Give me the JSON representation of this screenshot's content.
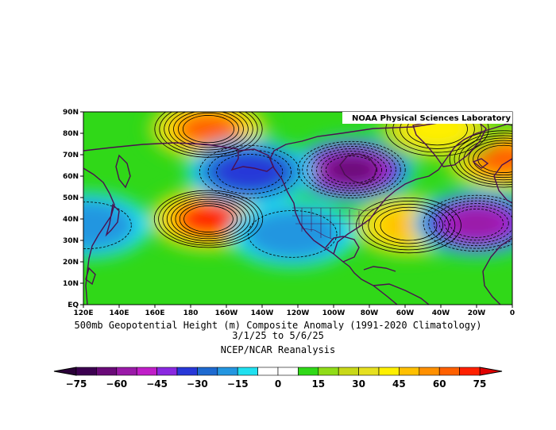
{
  "credit": "NOAA Physical Sciences Laboratory",
  "caption": {
    "line1": "500mb Geopotential Height (m) Composite Anomaly (1991-2020 Climatology)",
    "line2": "3/1/25  to 5/6/25",
    "line3": "NCEP/NCAR Reanalysis"
  },
  "map": {
    "lat_labels": [
      "90N",
      "80N",
      "70N",
      "60N",
      "50N",
      "40N",
      "30N",
      "20N",
      "10N",
      "EQ"
    ],
    "lon_labels": [
      "120E",
      "140E",
      "160E",
      "180",
      "160W",
      "140W",
      "120W",
      "100W",
      "80W",
      "60W",
      "40W",
      "20W",
      "0"
    ]
  },
  "colorbar": {
    "labels": [
      "-75",
      "-60",
      "-45",
      "-30",
      "-15",
      "0",
      "15",
      "30",
      "45",
      "60",
      "75"
    ],
    "colors": [
      "#3c0050",
      "#6a0a78",
      "#9a1aa8",
      "#c01ec8",
      "#8a28e0",
      "#2838d8",
      "#1e6ad0",
      "#2496e0",
      "#20e0f0",
      "#ffffff",
      "#ffffff",
      "#30d818",
      "#90dc18",
      "#c8d818",
      "#e6e020",
      "#fff000",
      "#ffc000",
      "#ff9000",
      "#ff6000",
      "#ff2000"
    ]
  },
  "anomalies": [
    {
      "name": "n-pacific-high",
      "lon": 190,
      "lat": 40,
      "value": 70
    },
    {
      "name": "polar-high",
      "lon": 190,
      "lat": 82,
      "value": 65
    },
    {
      "name": "n-canada-low",
      "lon": 270,
      "lat": 63,
      "value": -65
    },
    {
      "name": "aleutian-low",
      "lon": 213,
      "lat": 62,
      "value": -30
    },
    {
      "name": "w-atlantic-high",
      "lon": 302,
      "lat": 37,
      "value": 45
    },
    {
      "name": "e-atlantic-low",
      "lon": 340,
      "lat": 38,
      "value": -55
    },
    {
      "name": "europe-high",
      "lon": 355,
      "lat": 68,
      "value": 60
    },
    {
      "name": "greenland-high",
      "lon": 318,
      "lat": 82,
      "value": 40
    },
    {
      "name": "asia-low",
      "lon": 122,
      "lat": 37,
      "value": -20
    },
    {
      "name": "baja-low",
      "lon": 237,
      "lat": 33,
      "value": -20
    }
  ]
}
